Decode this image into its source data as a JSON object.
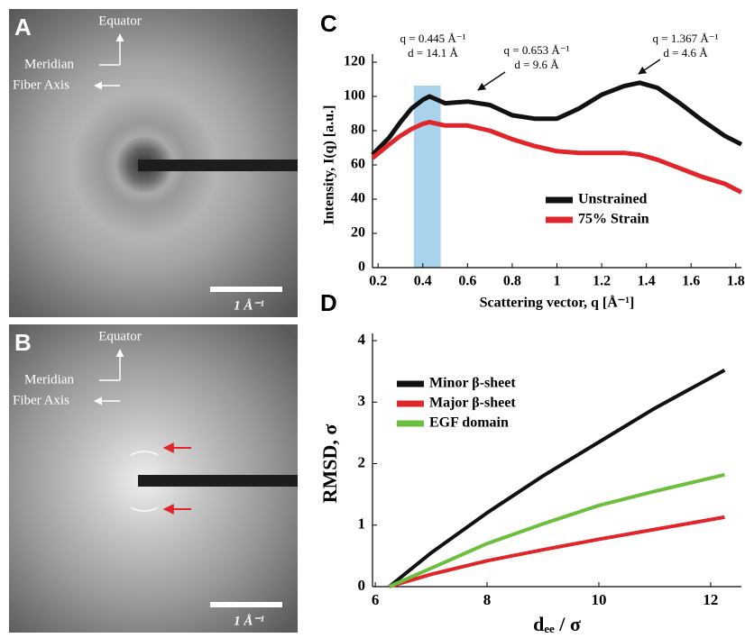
{
  "images": [
    {
      "label": "A",
      "equator": "Equator",
      "meridian": "Meridian",
      "fiber_axis": "Fiber Axis",
      "scale": "1 Å⁻¹"
    },
    {
      "label": "B",
      "equator": "Equator",
      "meridian": "Meridian",
      "fiber_axis": "Fiber Axis",
      "scale": "1 Å⁻¹"
    }
  ],
  "chart_data": [
    {
      "type": "line",
      "label": "C",
      "x_label": "Scattering vector, q [Å⁻¹]",
      "y_label": "Intensity, I(q) [a.u.]",
      "x": [
        0.175,
        0.25,
        0.3,
        0.35,
        0.4,
        0.43,
        0.5,
        0.6,
        0.7,
        0.8,
        0.9,
        1.0,
        1.1,
        1.2,
        1.3,
        1.37,
        1.45,
        1.55,
        1.65,
        1.75,
        1.825
      ],
      "series": [
        {
          "name": "Unstrained",
          "color": "#111111",
          "values": [
            66,
            76,
            85,
            93,
            98,
            100,
            96,
            97,
            95,
            89,
            87,
            87,
            93,
            101,
            106,
            108,
            105,
            96,
            86,
            77,
            72
          ]
        },
        {
          "name": "75% Strain",
          "color": "#e0262b",
          "values": [
            64,
            72,
            77,
            81,
            84,
            85,
            83,
            83,
            80,
            75,
            71,
            68,
            67,
            67,
            67,
            66,
            63,
            58,
            53,
            49,
            44
          ]
        }
      ],
      "xlim": [
        0.175,
        1.825
      ],
      "xticks": [
        0.2,
        0.4,
        0.6,
        0.8,
        1,
        1.2,
        1.4,
        1.6,
        1.8
      ],
      "ylim": [
        0,
        120
      ],
      "yticks": [
        0,
        20,
        40,
        60,
        80,
        100,
        120
      ],
      "highlight": {
        "xlim": [
          0.36,
          0.48
        ],
        "color": "#a9d3ec"
      },
      "annotations": [
        {
          "q": "q = 0.445 Å⁻¹",
          "d": "d = 14.1 Å"
        },
        {
          "q": "q = 0.653 Å⁻¹",
          "d": "d = 9.6 Å"
        },
        {
          "q": "q = 1.367 Å⁻¹",
          "d": "d = 4.6 Å"
        }
      ],
      "legend": "right"
    },
    {
      "type": "line",
      "label": "D",
      "x_label": "dₑₑ / σ",
      "y_label": "RMSD, σ",
      "x": [
        6.25,
        7,
        8,
        9,
        10,
        11,
        12.25
      ],
      "series": [
        {
          "name": "Minor β-sheet",
          "color": "#111111",
          "values": [
            0,
            0.55,
            1.2,
            1.8,
            2.35,
            2.9,
            3.52
          ]
        },
        {
          "name": "Major β-sheet",
          "color": "#e0262b",
          "values": [
            0,
            0.2,
            0.42,
            0.6,
            0.77,
            0.93,
            1.13
          ]
        },
        {
          "name": "EGF domain",
          "color": "#6cbf3c",
          "values": [
            0,
            0.3,
            0.7,
            1.02,
            1.32,
            1.55,
            1.82
          ]
        }
      ],
      "xlim": [
        5.95,
        12.55
      ],
      "xticks": [
        6,
        8,
        10,
        12
      ],
      "ylim": [
        0,
        4
      ],
      "yticks": [
        0,
        1,
        2,
        3,
        4
      ],
      "legend": "upper left"
    }
  ]
}
